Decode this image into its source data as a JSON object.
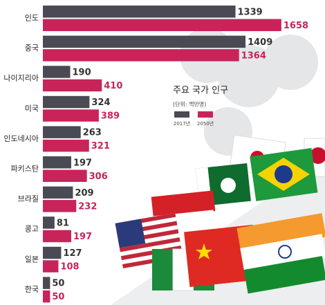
{
  "chart_data": {
    "type": "bar",
    "orientation": "horizontal",
    "title": "주요 국가 인구",
    "subtitle": "(단위: 백만명)",
    "categories": [
      "인도",
      "중국",
      "나이지리아",
      "미국",
      "인도네시아",
      "파키스탄",
      "브라질",
      "콩고",
      "일본",
      "한국"
    ],
    "series": [
      {
        "name": "2017년",
        "color": "#4a4a55",
        "values": [
          1339,
          1409,
          190,
          324,
          263,
          197,
          209,
          81,
          127,
          50
        ]
      },
      {
        "name": "2050년",
        "color": "#c8245a",
        "values": [
          1658,
          1364,
          410,
          389,
          321,
          306,
          232,
          197,
          108,
          50
        ]
      }
    ]
  }
}
